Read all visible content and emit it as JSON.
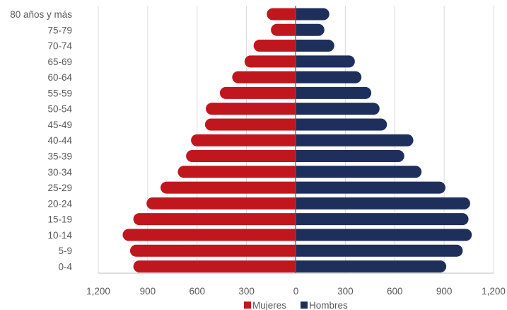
{
  "chart_data": {
    "type": "bar",
    "orientation": "horizontal",
    "subtype": "population-pyramid",
    "title": "",
    "xlabel": "",
    "ylabel": "",
    "categories": [
      "80 años y más",
      "75-79",
      "70-74",
      "65-69",
      "60-64",
      "55-59",
      "50-54",
      "45-49",
      "40-44",
      "35-39",
      "30-34",
      "25-29",
      "20-24",
      "15-19",
      "10-14",
      "5-9",
      "0-4"
    ],
    "series": [
      {
        "name": "Mujeres",
        "color": "#c0171e",
        "side": "left",
        "values": [
          175,
          150,
          255,
          310,
          385,
          460,
          545,
          550,
          635,
          665,
          715,
          820,
          905,
          985,
          1050,
          1005,
          985
        ]
      },
      {
        "name": "Hombres",
        "color": "#1f2f5c",
        "side": "right",
        "values": [
          205,
          175,
          235,
          360,
          400,
          460,
          510,
          555,
          715,
          660,
          765,
          910,
          1060,
          1050,
          1070,
          1015,
          915
        ]
      }
    ],
    "xlim": [
      -1200,
      1200
    ],
    "x_ticks": [
      "1,200",
      "900",
      "600",
      "300",
      "0",
      "300",
      "600",
      "900",
      "1,200"
    ],
    "grid": "vertical",
    "legend_position": "bottom",
    "axis_color": "#595959",
    "grid_color": "#d9d9d9"
  }
}
